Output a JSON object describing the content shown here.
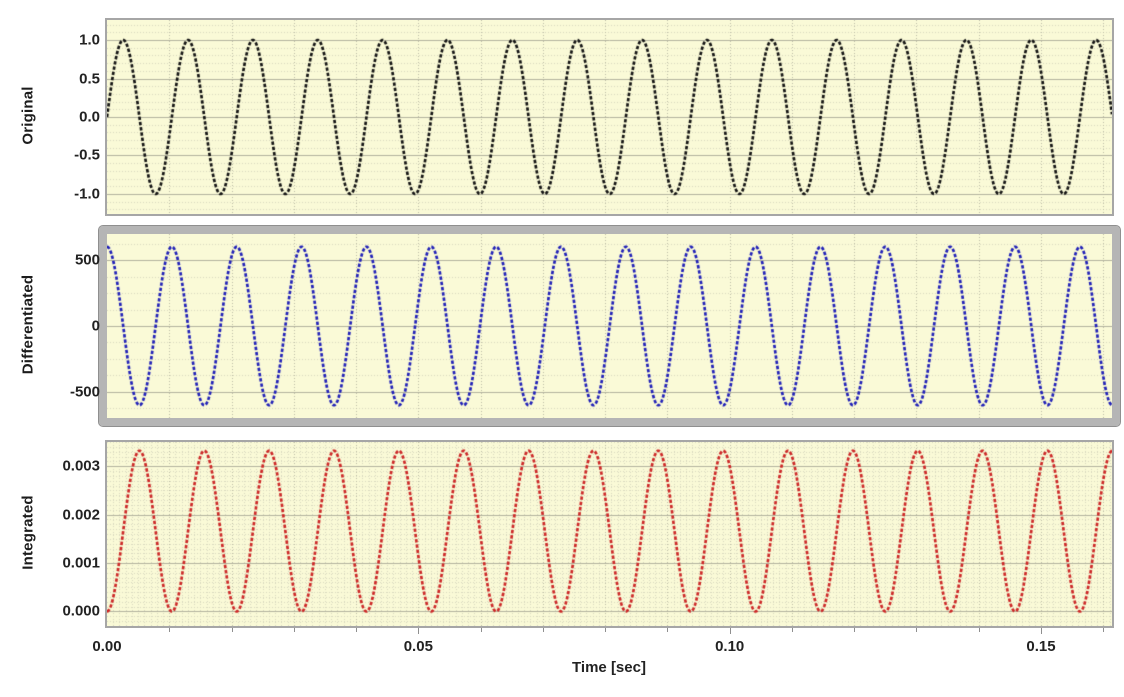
{
  "figure": {
    "xlabel": "Time [sec]",
    "xlim": [
      0,
      0.1614
    ],
    "x_ticks": [
      {
        "value": 0.0,
        "label": "0.00"
      },
      {
        "value": 0.05,
        "label": "0.05"
      },
      {
        "value": 0.1,
        "label": "0.10"
      },
      {
        "value": 0.15,
        "label": "0.15"
      }
    ],
    "x_grid_step": 0.01,
    "colors": {
      "page_bg": "#ffffff",
      "plot_bg": "#fafad7",
      "frame": "#a6a6a6",
      "selected_frame": "#b5b5b5",
      "grid_major": "#b3b39e",
      "grid_vertical": "#bcbca6",
      "grid_minor": "#d9d9bf",
      "tick_text": "#222222"
    }
  },
  "chart_data": [
    {
      "id": "original",
      "type": "line",
      "ylabel": "Original",
      "line_color": "#141414",
      "signal": {
        "kind": "sine",
        "frequency_hz": 96,
        "amplitude": 1.0,
        "offset": 0
      },
      "ylim": [
        -1.26,
        1.26
      ],
      "y_ticks": [
        {
          "value": 1.0,
          "label": "1.0"
        },
        {
          "value": 0.5,
          "label": "0.5"
        },
        {
          "value": 0.0,
          "label": "0.0"
        },
        {
          "value": -0.5,
          "label": "-0.5"
        },
        {
          "value": -1.0,
          "label": "-1.0"
        }
      ],
      "y_minor_step": 0.1,
      "selected": false
    },
    {
      "id": "differentiated",
      "type": "line",
      "ylabel": "Differentiated",
      "line_color": "#2121b8",
      "signal": {
        "kind": "cosine",
        "frequency_hz": 96,
        "amplitude": 603,
        "offset": 0
      },
      "ylim": [
        -700,
        700
      ],
      "y_ticks": [
        {
          "value": 500,
          "label": "500"
        },
        {
          "value": 0,
          "label": "0"
        },
        {
          "value": -500,
          "label": "-500"
        }
      ],
      "y_minor_step": 125,
      "selected": true
    },
    {
      "id": "integrated",
      "type": "line",
      "ylabel": "Integrated",
      "line_color": "#cd2828",
      "signal": {
        "kind": "one_minus_cosine",
        "frequency_hz": 96,
        "amplitude": 0.00166,
        "offset": 0
      },
      "ylim": [
        -0.0003,
        0.0035
      ],
      "y_ticks": [
        {
          "value": 0.003,
          "label": "0.003"
        },
        {
          "value": 0.002,
          "label": "0.002"
        },
        {
          "value": 0.001,
          "label": "0.001"
        },
        {
          "value": 0.0,
          "label": "0.000"
        }
      ],
      "y_minor_step": 0.0001,
      "x_minor_step": 0.001,
      "selected": false
    }
  ]
}
